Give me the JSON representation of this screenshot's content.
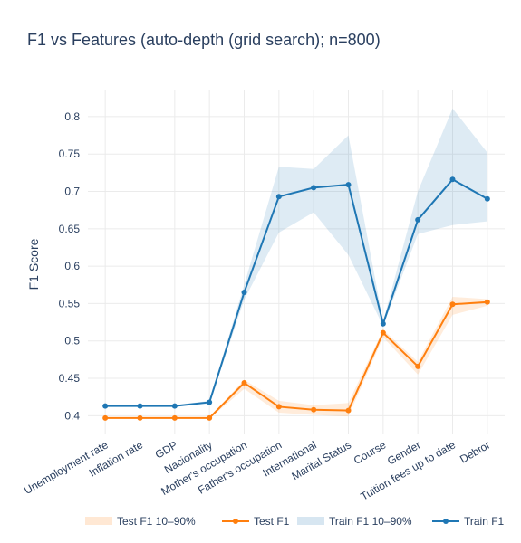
{
  "chart_data": {
    "type": "line",
    "title": "F1 vs Features (auto-depth (grid search); n=800)",
    "xlabel": "",
    "ylabel": "F1 Score",
    "ylim": [
      0.375,
      0.835
    ],
    "y_ticks": [
      0.4,
      0.45,
      0.5,
      0.55,
      0.6,
      0.65,
      0.7,
      0.75,
      0.8
    ],
    "y_tick_labels": [
      "0.4",
      "0.45",
      "0.5",
      "0.55",
      "0.6",
      "0.65",
      "0.7",
      "0.75",
      "0.8"
    ],
    "categories": [
      "Unemployment rate",
      "Inflation rate",
      "GDP",
      "Nacionality",
      "Mother's occupation",
      "Father's occupation",
      "International",
      "Marital Status",
      "Course",
      "Gender",
      "Tuition fees up to date",
      "Debtor"
    ],
    "grid": true,
    "legend_position": "bottom",
    "legend": [
      {
        "label": "Test F1 10–90%",
        "kind": "band",
        "color": "#ff7f0e"
      },
      {
        "label": "Test F1",
        "kind": "line",
        "color": "#ff7f0e"
      },
      {
        "label": "Train F1 10–90%",
        "kind": "band",
        "color": "#1f77b4"
      },
      {
        "label": "Train F1",
        "kind": "line",
        "color": "#1f77b4"
      }
    ],
    "series": [
      {
        "name": "Test F1",
        "color": "#ff7f0e",
        "values": [
          0.397,
          0.397,
          0.397,
          0.397,
          0.444,
          0.412,
          0.408,
          0.407,
          0.511,
          0.466,
          0.549,
          0.552
        ],
        "band_low": [
          0.396,
          0.396,
          0.396,
          0.396,
          0.436,
          0.404,
          0.401,
          0.399,
          0.505,
          0.455,
          0.535,
          0.547
        ],
        "band_high": [
          0.398,
          0.398,
          0.398,
          0.398,
          0.448,
          0.42,
          0.414,
          0.417,
          0.515,
          0.472,
          0.559,
          0.556
        ]
      },
      {
        "name": "Train F1",
        "color": "#1f77b4",
        "values": [
          0.413,
          0.413,
          0.413,
          0.418,
          0.565,
          0.693,
          0.705,
          0.709,
          0.523,
          0.662,
          0.716,
          0.69
        ],
        "band_low": [
          0.412,
          0.412,
          0.412,
          0.416,
          0.555,
          0.645,
          0.672,
          0.615,
          0.52,
          0.643,
          0.655,
          0.66
        ],
        "band_high": [
          0.414,
          0.414,
          0.414,
          0.42,
          0.575,
          0.733,
          0.73,
          0.775,
          0.526,
          0.7,
          0.811,
          0.752
        ]
      }
    ]
  }
}
